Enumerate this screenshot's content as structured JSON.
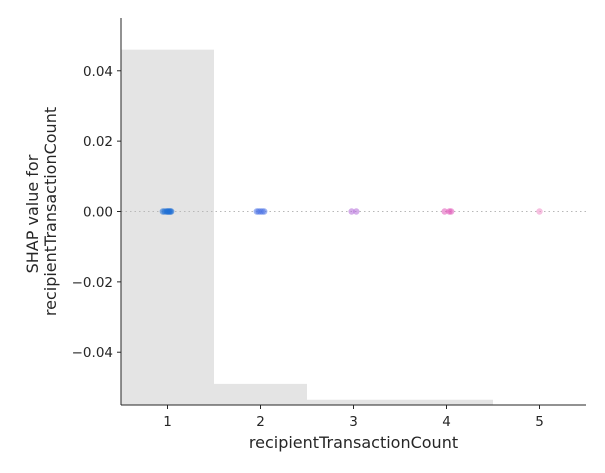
{
  "chart_data": {
    "type": "scatter",
    "title": "",
    "xlabel": "recipientTransactionCount",
    "ylabel_lines": [
      "SHAP value for",
      "recipientTransactionCount"
    ],
    "xlim": [
      0.5,
      5.5
    ],
    "ylim": [
      -0.055,
      0.055
    ],
    "x_ticks": [
      1,
      2,
      3,
      4,
      5
    ],
    "x_tick_labels": [
      "1",
      "2",
      "3",
      "4",
      "5"
    ],
    "y_ticks": [
      0.04,
      0.02,
      0.0,
      -0.02,
      -0.04
    ],
    "y_tick_labels": [
      "0.04",
      "0.02",
      "0.00",
      "−0.02",
      "−0.04"
    ],
    "grid": false,
    "zero_line": true,
    "background_histogram": {
      "color": "#e4e4e4",
      "bins": [
        {
          "x0": 0.5,
          "x1": 1.5,
          "top": 0.046
        },
        {
          "x0": 1.5,
          "x1": 2.5,
          "top": -0.049
        },
        {
          "x0": 2.5,
          "x1": 3.5,
          "top": -0.0535
        },
        {
          "x0": 3.5,
          "x1": 4.5,
          "top": -0.0535
        }
      ]
    },
    "series": [
      {
        "x": [
          0.95,
          0.97,
          0.99,
          1.0,
          1.01,
          1.02,
          1.03,
          1.04
        ],
        "y": [
          0,
          0,
          0,
          0,
          0,
          0,
          0,
          0
        ],
        "color": "#1f6fd6"
      },
      {
        "x": [
          1.96,
          1.98,
          2.0,
          2.02,
          2.04
        ],
        "y": [
          0,
          0,
          0,
          0,
          0
        ],
        "color": "#4f74e6"
      },
      {
        "x": [
          2.98,
          3.03
        ],
        "y": [
          0,
          0
        ],
        "color": "#b36ad8"
      },
      {
        "x": [
          3.98,
          4.03,
          4.05
        ],
        "y": [
          0,
          0,
          0
        ],
        "color": "#e055b8"
      },
      {
        "x": [
          5.0
        ],
        "y": [
          0
        ],
        "color": "#f08cc8"
      }
    ]
  }
}
